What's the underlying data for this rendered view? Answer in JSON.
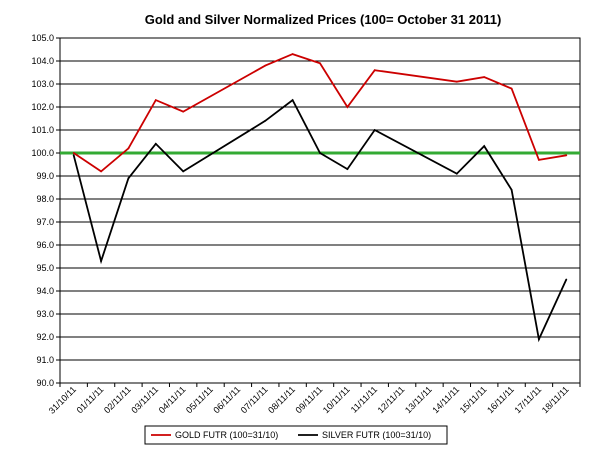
{
  "chart_data": {
    "type": "line",
    "title": "Gold and Silver Normalized Prices  (100= October 31 2011)",
    "xlabel": "",
    "ylabel": "",
    "ylim": [
      90.0,
      105.0
    ],
    "yticks": [
      "90.0",
      "91.0",
      "92.0",
      "93.0",
      "94.0",
      "95.0",
      "96.0",
      "97.0",
      "98.0",
      "99.0",
      "100.0",
      "101.0",
      "102.0",
      "103.0",
      "104.0",
      "105.0"
    ],
    "categories": [
      "31/10/11",
      "01/11/11",
      "02/11/11",
      "03/11/11",
      "04/11/11",
      "05/11/11",
      "06/11/11",
      "07/11/11",
      "08/11/11",
      "09/11/11",
      "10/11/11",
      "11/11/11",
      "12/11/11",
      "13/11/11",
      "14/11/11",
      "15/11/11",
      "16/11/11",
      "17/11/11",
      "18/11/11"
    ],
    "series": [
      {
        "name": "GOLD FUTR (100=31/10)",
        "color": "#cc0000",
        "x": [
          0,
          1,
          2,
          3,
          4,
          7,
          8,
          9,
          10,
          11,
          14,
          15,
          16,
          17,
          18
        ],
        "values": [
          100.0,
          99.2,
          100.2,
          102.3,
          101.8,
          103.8,
          104.3,
          103.9,
          102.0,
          103.6,
          103.1,
          103.3,
          102.8,
          99.7,
          99.9
        ]
      },
      {
        "name": "SILVER  FUTR (100=31/10)",
        "color": "#000000",
        "x": [
          0,
          1,
          2,
          3,
          4,
          7,
          8,
          9,
          10,
          11,
          14,
          15,
          16,
          17,
          18
        ],
        "values": [
          99.9,
          95.3,
          98.9,
          100.4,
          99.2,
          101.4,
          102.3,
          100.0,
          99.3,
          101.0,
          99.1,
          100.3,
          98.4,
          91.9,
          94.5
        ]
      }
    ],
    "reference_line": {
      "value": 100.0,
      "color": "#33aa33"
    },
    "grid": true,
    "legend": "bottom"
  }
}
